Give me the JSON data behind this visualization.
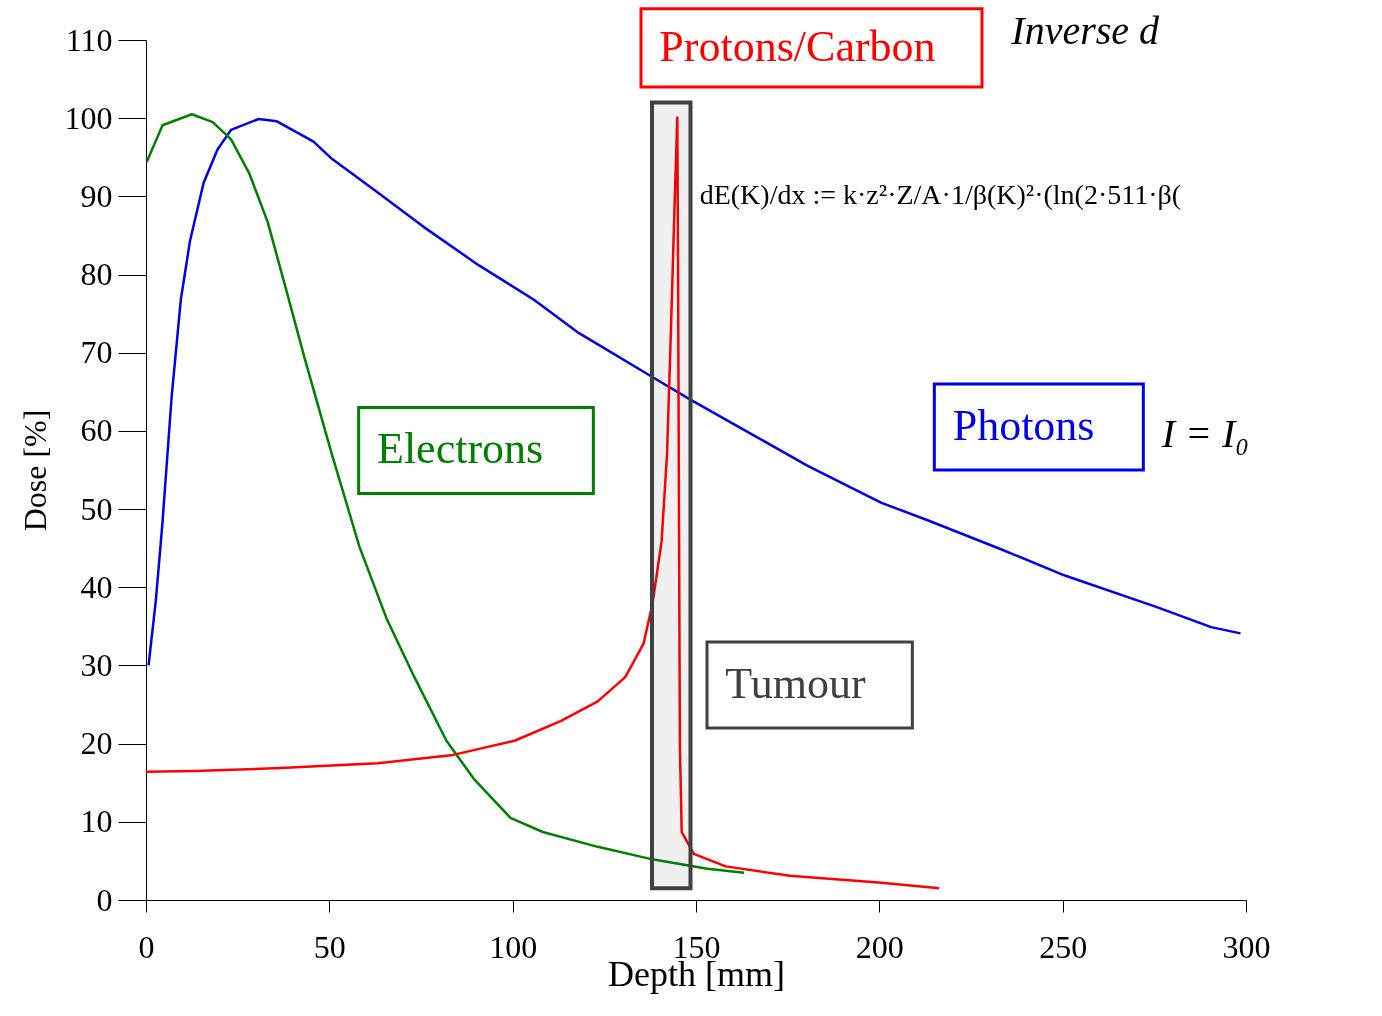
{
  "chart_data": {
    "type": "line",
    "xlabel": "Depth [mm]",
    "ylabel": "Dose [%]",
    "xlim": [
      0,
      300
    ],
    "ylim": [
      0,
      110
    ],
    "xticks": [
      0,
      50,
      100,
      150,
      200,
      250,
      300
    ],
    "yticks": [
      0,
      10,
      20,
      30,
      40,
      50,
      60,
      70,
      80,
      90,
      100,
      110
    ],
    "grid": false,
    "legend": false,
    "marker": "none",
    "line_style": "solid",
    "series": [
      {
        "name": "Photons",
        "color": "#0000ee",
        "x": [
          0.7,
          2.7,
          4.5,
          7,
          9.5,
          12,
          15.7,
          19.5,
          23.2,
          30.7,
          35.7,
          45.7,
          50.7,
          63.2,
          75.7,
          90.7,
          105.7,
          118.1,
          138.1,
          148.1,
          165.5,
          180.6,
          200.6,
          213,
          233,
          250.6,
          275.5,
          290.5,
          298.5
        ],
        "values": [
          30,
          38.4,
          48.3,
          64.4,
          76.8,
          84.3,
          91.7,
          96,
          98.5,
          99.9,
          99.6,
          97,
          94.8,
          90.5,
          86.1,
          81.2,
          76.8,
          72.5,
          66.9,
          64.1,
          59.5,
          55.5,
          50.8,
          48.6,
          44.9,
          41.5,
          37.5,
          34.9,
          34.1
        ]
      },
      {
        "name": "Electrons",
        "color": "#008000",
        "x": [
          0.2,
          4.5,
          12.5,
          18.2,
          23.2,
          28.2,
          33.2,
          38.2,
          43.2,
          50.7,
          58.2,
          65.7,
          73.2,
          81.9,
          89.4,
          99.4,
          108.2,
          123.2,
          138.1,
          153.1,
          163.1
        ],
        "values": [
          94.4,
          99.1,
          100.5,
          99.5,
          97.3,
          92.9,
          86.7,
          78.1,
          69.4,
          57,
          45.2,
          35.9,
          28.5,
          20.4,
          15.5,
          10.5,
          8.7,
          6.8,
          5.2,
          4,
          3.5
        ]
      },
      {
        "name": "Protons/Carbon",
        "color": "#ff0000",
        "x": [
          0,
          13.2,
          38.2,
          63.2,
          83.2,
          100.7,
          113.2,
          123.2,
          130.7,
          135.7,
          138.1,
          140.6,
          142.1,
          143.1,
          144.1,
          144.9,
          145.1,
          145.6,
          146.1,
          149.4,
          158.1,
          175.6,
          200.6,
          216.3
        ],
        "values": [
          16.4,
          16.5,
          16.9,
          17.5,
          18.5,
          20.4,
          22.9,
          25.4,
          28.5,
          32.8,
          37.8,
          45.8,
          57,
          71.9,
          88,
          100.1,
          81.8,
          19.8,
          8.7,
          5.9,
          4.3,
          3.1,
          2.2,
          1.5
        ]
      }
    ],
    "bands": [
      {
        "axis": "x",
        "from": 138,
        "to": 148.5,
        "label": "Tumour",
        "color": "#404040"
      }
    ],
    "annotations": [
      "dE(K)/dx := k·z²·Z/A·1/β(K)²·(ln(2·511·β(",
      "I = I₀",
      "Inverse d"
    ]
  }
}
